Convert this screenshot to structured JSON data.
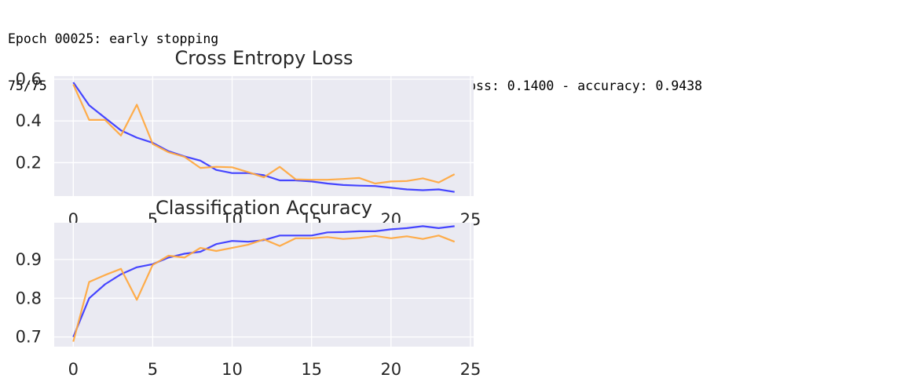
{
  "console": {
    "line1": "Epoch 00025: early stopping",
    "line2": "75/75 [==============================] - 35s 463ms/step - loss: 0.1400 - accuracy: 0.9438"
  },
  "colors": {
    "train": "#3c3cff",
    "validation": "#ffa940",
    "axes_bg": "#eaeaf2",
    "grid": "#ffffff"
  },
  "chart_data": [
    {
      "type": "line",
      "title": "Cross Entropy Loss",
      "xlabel": "",
      "ylabel": "",
      "xlim": [
        -1.2,
        25.2
      ],
      "ylim": [
        0.04,
        0.615
      ],
      "xticks": [
        0,
        5,
        10,
        15,
        20,
        25
      ],
      "yticks": [
        0.2,
        0.4,
        0.6
      ],
      "ytick_labels": [
        "0.2",
        "0.4",
        "0.6"
      ],
      "grid": true,
      "x": [
        0,
        1,
        2,
        3,
        4,
        5,
        6,
        7,
        8,
        9,
        10,
        11,
        12,
        13,
        14,
        15,
        16,
        17,
        18,
        19,
        20,
        21,
        22,
        23,
        24
      ],
      "series": [
        {
          "color": "#3c3cff",
          "values": [
            0.585,
            0.475,
            0.415,
            0.355,
            0.32,
            0.295,
            0.255,
            0.23,
            0.21,
            0.165,
            0.15,
            0.15,
            0.14,
            0.115,
            0.115,
            0.11,
            0.1,
            0.093,
            0.09,
            0.088,
            0.08,
            0.072,
            0.068,
            0.072,
            0.06
          ]
        },
        {
          "color": "#ffa940",
          "values": [
            0.575,
            0.405,
            0.405,
            0.33,
            0.478,
            0.29,
            0.25,
            0.228,
            0.175,
            0.18,
            0.178,
            0.155,
            0.13,
            0.18,
            0.12,
            0.118,
            0.118,
            0.122,
            0.127,
            0.1,
            0.11,
            0.112,
            0.125,
            0.105,
            0.145
          ]
        }
      ]
    },
    {
      "type": "line",
      "title": "Classification Accuracy",
      "xlabel": "",
      "ylabel": "",
      "xlim": [
        -1.2,
        25.2
      ],
      "ylim": [
        0.675,
        0.995
      ],
      "xticks": [
        0,
        5,
        10,
        15,
        20,
        25
      ],
      "yticks": [
        0.7,
        0.8,
        0.9
      ],
      "ytick_labels": [
        "0.7",
        "0.8",
        "0.9"
      ],
      "grid": true,
      "x": [
        0,
        1,
        2,
        3,
        4,
        5,
        6,
        7,
        8,
        9,
        10,
        11,
        12,
        13,
        14,
        15,
        16,
        17,
        18,
        19,
        20,
        21,
        22,
        23,
        24
      ],
      "series": [
        {
          "color": "#3c3cff",
          "values": [
            0.7,
            0.8,
            0.836,
            0.862,
            0.88,
            0.888,
            0.905,
            0.915,
            0.92,
            0.94,
            0.948,
            0.946,
            0.95,
            0.962,
            0.962,
            0.962,
            0.97,
            0.971,
            0.973,
            0.973,
            0.978,
            0.981,
            0.986,
            0.981,
            0.986
          ]
        },
        {
          "color": "#ffa940",
          "values": [
            0.688,
            0.842,
            0.86,
            0.876,
            0.796,
            0.886,
            0.91,
            0.905,
            0.93,
            0.922,
            0.93,
            0.938,
            0.952,
            0.935,
            0.955,
            0.955,
            0.958,
            0.953,
            0.956,
            0.961,
            0.955,
            0.96,
            0.953,
            0.962,
            0.946
          ]
        }
      ]
    }
  ]
}
